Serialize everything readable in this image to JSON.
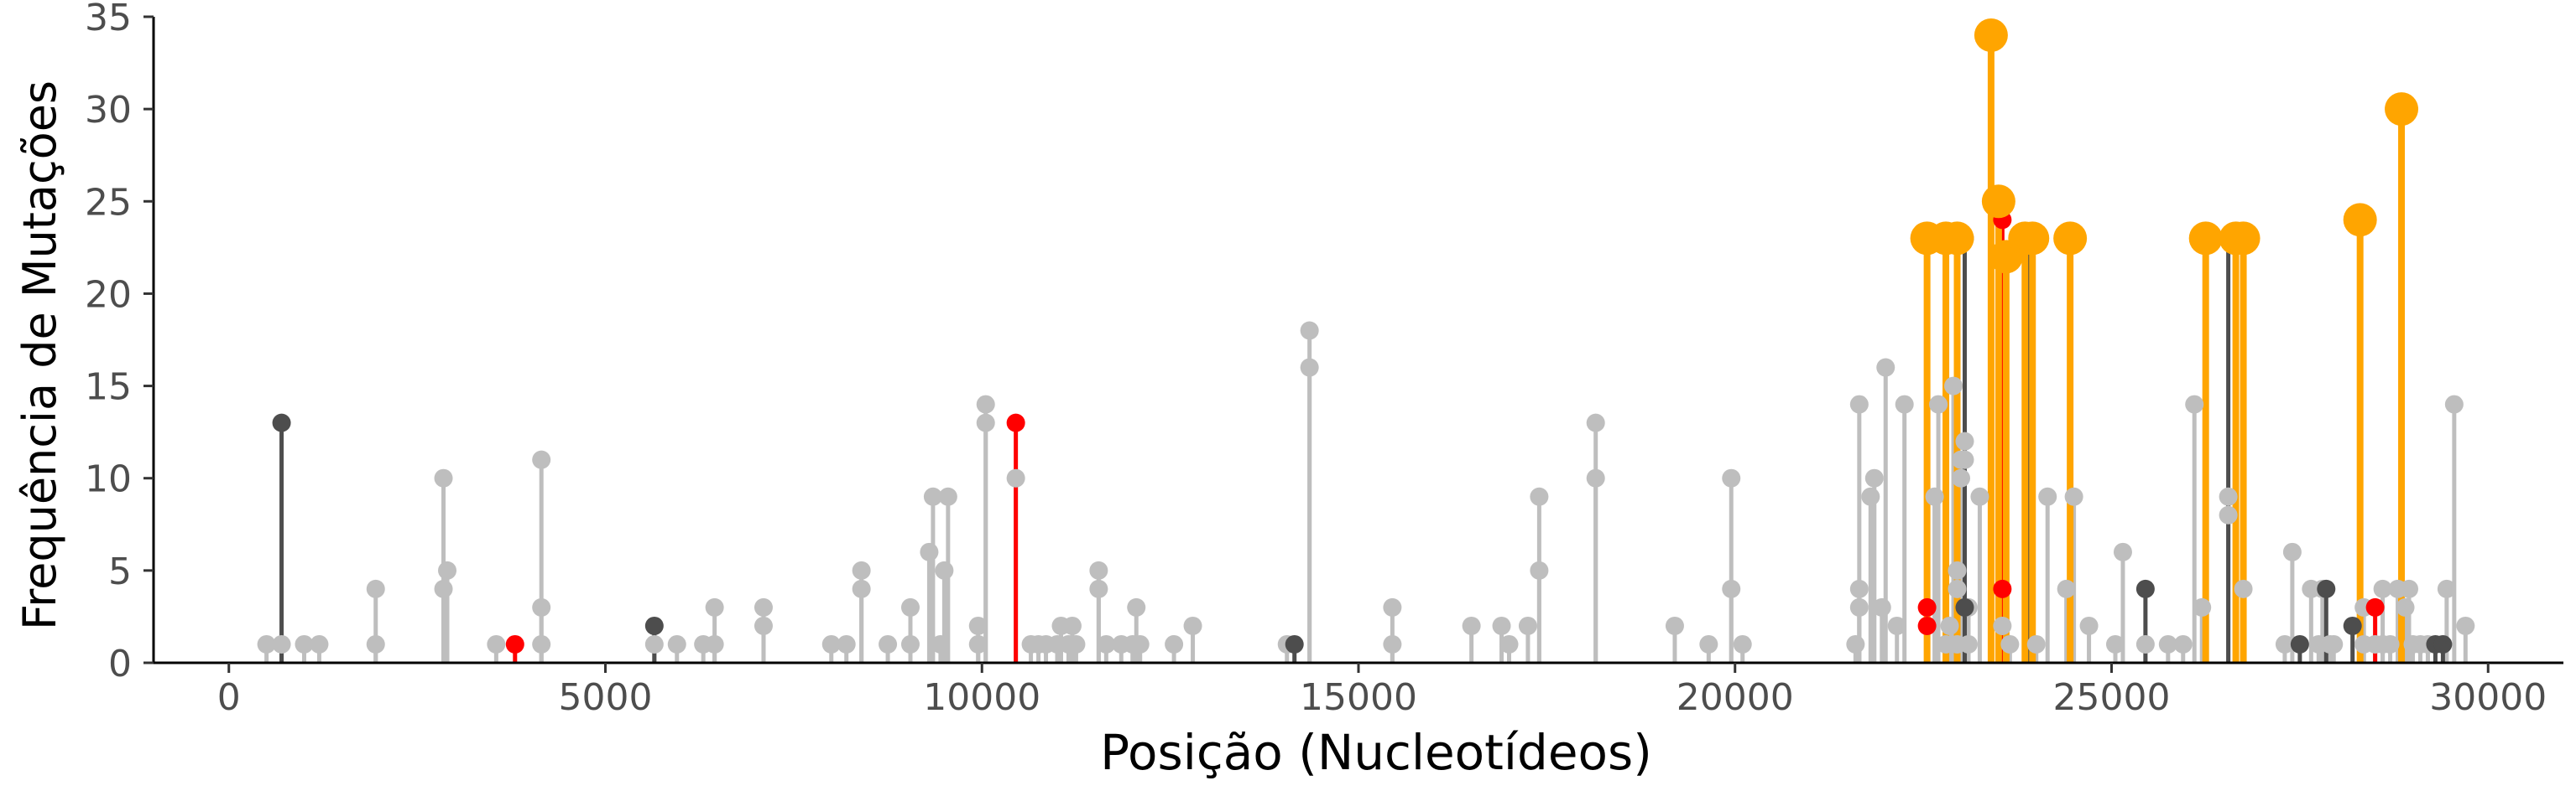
{
  "chart_data": {
    "type": "scatter",
    "subtype": "lollipop",
    "title": "",
    "xlabel": "Posição (Nucleotídeos)",
    "ylabel": "Frequência de Mutações",
    "xlim": [
      -1000,
      31000
    ],
    "ylim": [
      0,
      35
    ],
    "x_ticks": [
      0,
      5000,
      10000,
      15000,
      20000,
      25000,
      30000
    ],
    "y_ticks": [
      0,
      5,
      10,
      15,
      20,
      25,
      30,
      35
    ],
    "grid": false,
    "legend": "none",
    "colors": {
      "grey": "#bebebe",
      "dark": "#4d4d4d",
      "red": "#ff0000",
      "orange": "#ffa500"
    },
    "series": [
      {
        "color_key": "grey",
        "points": [
          [
            500,
            1
          ],
          [
            700,
            1
          ],
          [
            1000,
            1
          ],
          [
            1200,
            1
          ],
          [
            1950,
            1
          ],
          [
            1950,
            4
          ],
          [
            2850,
            4
          ],
          [
            2850,
            10
          ],
          [
            2900,
            5
          ],
          [
            3550,
            1
          ],
          [
            4150,
            1
          ],
          [
            4150,
            3
          ],
          [
            4150,
            11
          ],
          [
            5650,
            1
          ],
          [
            5950,
            1
          ],
          [
            6300,
            1
          ],
          [
            6450,
            1
          ],
          [
            6450,
            3
          ],
          [
            7100,
            2
          ],
          [
            7100,
            3
          ],
          [
            8000,
            1
          ],
          [
            8200,
            1
          ],
          [
            8400,
            4
          ],
          [
            8400,
            5
          ],
          [
            8750,
            1
          ],
          [
            9050,
            1
          ],
          [
            9050,
            3
          ],
          [
            9300,
            6
          ],
          [
            9350,
            9
          ],
          [
            9450,
            1
          ],
          [
            9500,
            5
          ],
          [
            9550,
            9
          ],
          [
            9950,
            1
          ],
          [
            9950,
            2
          ],
          [
            10050,
            13
          ],
          [
            10050,
            14
          ],
          [
            10450,
            10
          ],
          [
            10650,
            1
          ],
          [
            10750,
            1
          ],
          [
            10850,
            1
          ],
          [
            11000,
            1
          ],
          [
            11050,
            2
          ],
          [
            11150,
            1
          ],
          [
            11200,
            2
          ],
          [
            11250,
            1
          ],
          [
            11550,
            4
          ],
          [
            11550,
            5
          ],
          [
            11650,
            1
          ],
          [
            11850,
            1
          ],
          [
            12000,
            1
          ],
          [
            12050,
            3
          ],
          [
            12100,
            1
          ],
          [
            12550,
            1
          ],
          [
            12800,
            2
          ],
          [
            14050,
            1
          ],
          [
            14350,
            16
          ],
          [
            14350,
            18
          ],
          [
            15450,
            1
          ],
          [
            15450,
            3
          ],
          [
            16500,
            2
          ],
          [
            16900,
            2
          ],
          [
            17000,
            1
          ],
          [
            17250,
            2
          ],
          [
            17400,
            5
          ],
          [
            17400,
            9
          ],
          [
            18150,
            10
          ],
          [
            18150,
            13
          ],
          [
            19200,
            2
          ],
          [
            19650,
            1
          ],
          [
            19950,
            4
          ],
          [
            19950,
            10
          ],
          [
            20100,
            1
          ],
          [
            21600,
            1
          ],
          [
            21650,
            3
          ],
          [
            21650,
            4
          ],
          [
            21650,
            14
          ],
          [
            21800,
            9
          ],
          [
            21850,
            10
          ],
          [
            21950,
            3
          ],
          [
            22000,
            16
          ],
          [
            22150,
            2
          ],
          [
            22250,
            14
          ],
          [
            22650,
            9
          ],
          [
            22700,
            14
          ],
          [
            22800,
            1
          ],
          [
            22850,
            2
          ],
          [
            22900,
            15
          ],
          [
            22950,
            1
          ],
          [
            22950,
            4
          ],
          [
            22950,
            5
          ],
          [
            23000,
            10
          ],
          [
            23000,
            11
          ],
          [
            23050,
            12
          ],
          [
            23050,
            11
          ],
          [
            23100,
            1
          ],
          [
            23100,
            3
          ],
          [
            23250,
            9
          ],
          [
            23550,
            2
          ],
          [
            23650,
            1
          ],
          [
            24000,
            1
          ],
          [
            24150,
            9
          ],
          [
            24400,
            4
          ],
          [
            24500,
            9
          ],
          [
            24700,
            2
          ],
          [
            25050,
            1
          ],
          [
            25150,
            6
          ],
          [
            25450,
            1
          ],
          [
            25750,
            1
          ],
          [
            25950,
            1
          ],
          [
            26100,
            14
          ],
          [
            26200,
            3
          ],
          [
            26550,
            8
          ],
          [
            26550,
            9
          ],
          [
            26750,
            4
          ],
          [
            27300,
            1
          ],
          [
            27400,
            6
          ],
          [
            27650,
            4
          ],
          [
            27750,
            1
          ],
          [
            27800,
            4
          ],
          [
            27900,
            1
          ],
          [
            27950,
            1
          ],
          [
            28350,
            1
          ],
          [
            28350,
            3
          ],
          [
            28500,
            1
          ],
          [
            28600,
            1
          ],
          [
            28600,
            4
          ],
          [
            28700,
            1
          ],
          [
            28800,
            4
          ],
          [
            28900,
            3
          ],
          [
            28950,
            4
          ],
          [
            29000,
            1
          ],
          [
            29100,
            1
          ],
          [
            29200,
            1
          ],
          [
            29450,
            4
          ],
          [
            29550,
            14
          ],
          [
            29700,
            2
          ]
        ]
      },
      {
        "color_key": "dark",
        "points": [
          [
            700,
            13
          ],
          [
            5650,
            2
          ],
          [
            14150,
            1
          ],
          [
            23050,
            23
          ],
          [
            23050,
            3
          ],
          [
            23900,
            23
          ],
          [
            24450,
            23
          ],
          [
            25450,
            4
          ],
          [
            26550,
            23
          ],
          [
            27500,
            1
          ],
          [
            27850,
            4
          ],
          [
            28200,
            2
          ],
          [
            28300,
            24
          ],
          [
            29300,
            1
          ],
          [
            29400,
            1
          ]
        ]
      },
      {
        "color_key": "red",
        "points": [
          [
            3800,
            1
          ],
          [
            10450,
            13
          ],
          [
            22550,
            3
          ],
          [
            22550,
            2
          ],
          [
            23550,
            24
          ],
          [
            23550,
            4
          ],
          [
            28500,
            3
          ]
        ]
      },
      {
        "color_key": "orange",
        "points": [
          [
            22550,
            23
          ],
          [
            22800,
            23
          ],
          [
            22950,
            23
          ],
          [
            23400,
            34
          ],
          [
            23500,
            25
          ],
          [
            23600,
            22
          ],
          [
            23850,
            23
          ],
          [
            23950,
            23
          ],
          [
            24450,
            23
          ],
          [
            26250,
            23
          ],
          [
            26650,
            23
          ],
          [
            26750,
            23
          ],
          [
            28300,
            24
          ],
          [
            28850,
            30
          ]
        ]
      }
    ]
  }
}
